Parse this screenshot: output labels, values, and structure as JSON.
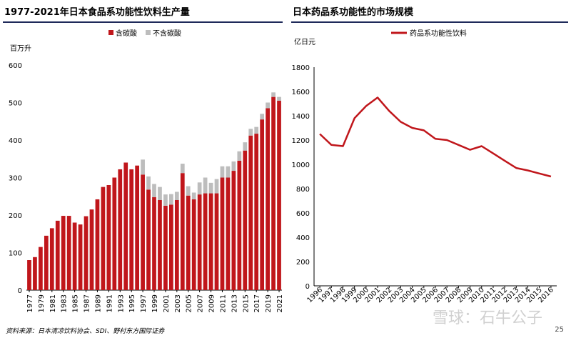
{
  "left_chart_title": "1977-2021年日本食品系功能性饮料生产量",
  "right_chart_title": "日本药品系功能性的市场规模",
  "source_note": "资料来源：日本清凉饮料协会、SDI、野村东方国际证券",
  "page_number": "25",
  "watermark": "雪球：石牛公子",
  "colors": {
    "red": "#c0161b",
    "gray": "#bdbdbd",
    "line": "#c0161b",
    "title_rule": "#1f2a5a"
  },
  "chart_data": [
    {
      "type": "bar",
      "stacked": true,
      "title": "1977-2021年日本食品系功能性饮料生产量",
      "ylabel": "百万升",
      "ylim": [
        0,
        600
      ],
      "yticks": [
        0,
        100,
        200,
        300,
        400,
        500,
        600
      ],
      "categories": [
        "1977",
        "1978",
        "1979",
        "1980",
        "1981",
        "1982",
        "1983",
        "1984",
        "1985",
        "1986",
        "1987",
        "1988",
        "1989",
        "1990",
        "1991",
        "1992",
        "1993",
        "1994",
        "1995",
        "1996",
        "1997",
        "1998",
        "1999",
        "2000",
        "2001",
        "2002",
        "2003",
        "2004",
        "2005",
        "2006",
        "2007",
        "2008",
        "2009",
        "2010",
        "2011",
        "2012",
        "2013",
        "2014",
        "2015",
        "2016",
        "2017",
        "2018",
        "2019",
        "2020",
        "2021"
      ],
      "xticklabels": [
        "1977",
        "1979",
        "1981",
        "1983",
        "1985",
        "1987",
        "1989",
        "1991",
        "1993",
        "1995",
        "1997",
        "1999",
        "2001",
        "2003",
        "2005",
        "2007",
        "2009",
        "2011",
        "2013",
        "2015",
        "2017",
        "2019",
        "2021"
      ],
      "legend_position": "top",
      "series": [
        {
          "name": "含碳酸",
          "color": "#c0161b",
          "values": [
            80,
            88,
            115,
            145,
            165,
            185,
            198,
            198,
            180,
            175,
            197,
            215,
            242,
            275,
            280,
            300,
            322,
            340,
            322,
            332,
            308,
            268,
            248,
            240,
            225,
            228,
            240,
            312,
            252,
            242,
            255,
            258,
            258,
            258,
            300,
            300,
            318,
            345,
            372,
            412,
            417,
            455,
            485,
            515,
            505
          ]
        },
        {
          "name": "不含碳酸",
          "color": "#bdbdbd",
          "values": [
            0,
            0,
            0,
            0,
            0,
            0,
            0,
            0,
            0,
            0,
            0,
            0,
            0,
            0,
            0,
            0,
            0,
            0,
            0,
            0,
            40,
            35,
            35,
            35,
            30,
            28,
            22,
            25,
            25,
            18,
            32,
            42,
            28,
            38,
            30,
            30,
            25,
            25,
            22,
            18,
            18,
            15,
            15,
            12,
            10
          ]
        }
      ]
    },
    {
      "type": "line",
      "title": "日本药品系功能性的市场规模",
      "ylabel": "亿日元",
      "ylim": [
        0,
        1800
      ],
      "yticks": [
        0,
        200,
        400,
        600,
        800,
        1000,
        1200,
        1400,
        1600,
        1800
      ],
      "x": [
        "1996",
        "1997",
        "1998",
        "1999",
        "2000",
        "2001",
        "2002",
        "2003",
        "2004",
        "2005",
        "2006",
        "2007",
        "2008",
        "2009",
        "2010",
        "2011",
        "2012",
        "2013",
        "2014",
        "2015",
        "2016"
      ],
      "legend_position": "top",
      "series": [
        {
          "name": "药品系功能性饮料",
          "color": "#c0161b",
          "values": [
            1250,
            1160,
            1150,
            1380,
            1480,
            1550,
            1440,
            1350,
            1300,
            1280,
            1210,
            1200,
            1160,
            1120,
            1150,
            1090,
            1030,
            970,
            950,
            925,
            900
          ]
        }
      ]
    }
  ]
}
